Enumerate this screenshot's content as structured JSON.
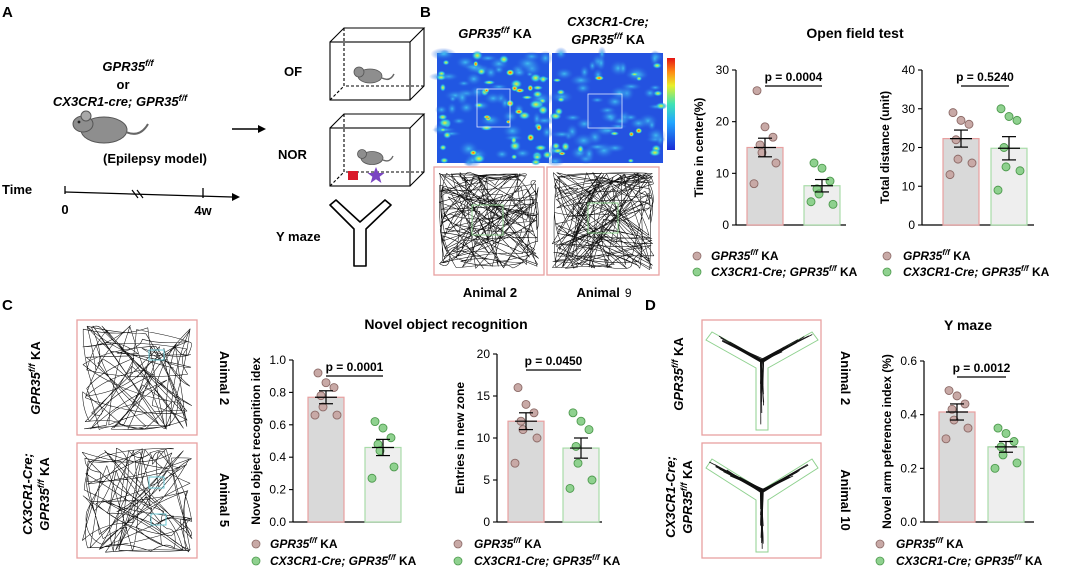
{
  "panel_letters": {
    "a": "A",
    "b": "B",
    "c": "C",
    "d": "D"
  },
  "panel_a": {
    "genotype_1": "GPR35",
    "genotype_1_sup": "f/f",
    "or_text": "or",
    "genotype_2": "CX3CR1-cre; GPR35",
    "genotype_2_sup": "f/f",
    "model_label": "(Epilepsy model)",
    "time_label": "Time",
    "t0": "0",
    "t4": "4w",
    "tests": [
      "OF",
      "NOR",
      "Y maze"
    ]
  },
  "panel_b": {
    "col1_title": "GPR35",
    "col1_title_sup": "f/f",
    "col1_title_suffix": " KA",
    "col2_title_line1": "CX3CR1-Cre;",
    "col2_title_line2": "GPR35",
    "col2_title_sup": "f/f",
    "col2_title_suffix": " KA",
    "animal_1": "Animal 2",
    "animal_2_text": "Animal",
    "animal_2_num": "9",
    "section_title": "Open field test"
  },
  "panel_c": {
    "row1_label": "GPR35",
    "row1_sup": "f/f",
    "row1_suffix": " KA",
    "row2_label_line1": "CX3CR1-Cre;",
    "row2_label_line2": "GPR35",
    "row2_sup": "f/f",
    "row2_suffix": " KA",
    "animal_1": "Animal 2",
    "animal_2": "Animal 5",
    "section_title": "Novel object recognition"
  },
  "panel_d": {
    "row1_label": "GPR35",
    "row1_sup": "f/f",
    "row1_suffix": " KA",
    "row2_label_line1": "CX3CR1-Cre;",
    "row2_label_line2": "GPR35",
    "row2_sup": "f/f",
    "row2_suffix": " KA",
    "animal_1": "Animal 2",
    "animal_2": "Animal 10",
    "section_title": "Y maze"
  },
  "legend": {
    "g1_name": "GPR35",
    "g1_sup": "f/f",
    "g1_suffix": " KA",
    "g2_prefix": "CX3CR1-Cre; GPR35",
    "g2_sup": "f/f",
    "g2_suffix": " KA"
  },
  "colors": {
    "group1_fill": "#d9d9d9",
    "group1_edge": "#e8a0a0",
    "group1_dot": "#c8a9a6",
    "group2_fill": "#eeeeee",
    "group2_edge": "#a9dca9",
    "group2_dot": "#8fd18f",
    "frame_red": "#e8a0a0",
    "frame_green": "#8fd18f"
  },
  "chart_data": [
    {
      "id": "of_center",
      "type": "bar",
      "ylabel": "Time in center(%)",
      "ylim": [
        0,
        30
      ],
      "yticks": [
        0,
        10,
        20,
        30
      ],
      "pvalue": "p = 0.0004",
      "series": [
        {
          "name": "GPR35 f/f KA",
          "mean": 15,
          "sem": 1.8,
          "points": [
            26,
            19,
            17,
            15.5,
            14,
            12,
            8
          ]
        },
        {
          "name": "CX3CR1-Cre; GPR35 f/f KA",
          "mean": 7.6,
          "sem": 1.2,
          "points": [
            12,
            11,
            8.5,
            7,
            6,
            4,
            4.5
          ]
        }
      ]
    },
    {
      "id": "of_distance",
      "type": "bar",
      "ylabel": "Total distance (unit)",
      "ylim": [
        0,
        40
      ],
      "yticks": [
        0,
        10,
        20,
        30,
        40
      ],
      "pvalue": "p = 0.5240",
      "series": [
        {
          "name": "GPR35 f/f KA",
          "mean": 22.3,
          "sem": 2.2,
          "points": [
            29,
            27,
            26,
            22,
            17,
            16,
            13
          ]
        },
        {
          "name": "CX3CR1-Cre; GPR35 f/f KA",
          "mean": 19.8,
          "sem": 3.0,
          "points": [
            30,
            28,
            27,
            20,
            15,
            14,
            9
          ]
        }
      ]
    },
    {
      "id": "nor_index",
      "type": "bar",
      "ylabel": "Novel object recognition idex",
      "ylim": [
        0,
        1.0
      ],
      "yticks": [
        0.0,
        0.2,
        0.4,
        0.6,
        0.8,
        1.0
      ],
      "pvalue": "p = 0.0001",
      "series": [
        {
          "name": "GPR35 f/f KA",
          "mean": 0.77,
          "sem": 0.04,
          "points": [
            0.92,
            0.86,
            0.83,
            0.78,
            0.71,
            0.66,
            0.66
          ]
        },
        {
          "name": "CX3CR1-Cre; GPR35 f/f KA",
          "mean": 0.46,
          "sem": 0.05,
          "points": [
            0.62,
            0.58,
            0.52,
            0.48,
            0.44,
            0.34,
            0.27
          ]
        }
      ]
    },
    {
      "id": "nor_entries",
      "type": "bar",
      "ylabel": "Entries in new zone",
      "ylim": [
        0,
        20
      ],
      "yticks": [
        0,
        5,
        10,
        15,
        20
      ],
      "pvalue": "p = 0.0450",
      "series": [
        {
          "name": "GPR35 f/f KA",
          "mean": 12.0,
          "sem": 1.0,
          "points": [
            16,
            14,
            13,
            12,
            11,
            10,
            7
          ]
        },
        {
          "name": "CX3CR1-Cre; GPR35 f/f KA",
          "mean": 8.8,
          "sem": 1.2,
          "points": [
            13,
            12,
            11,
            9,
            7,
            5,
            4
          ]
        }
      ]
    },
    {
      "id": "ymaze_index",
      "type": "bar",
      "ylabel": "Novel arm peference index (%)",
      "ylim": [
        0,
        0.6
      ],
      "yticks": [
        0.0,
        0.2,
        0.4,
        0.6
      ],
      "pvalue": "p = 0.0012",
      "series": [
        {
          "name": "GPR35 f/f KA",
          "mean": 0.41,
          "sem": 0.03,
          "points": [
            0.49,
            0.47,
            0.44,
            0.42,
            0.38,
            0.35,
            0.31
          ]
        },
        {
          "name": "CX3CR1-Cre; GPR35 f/f KA",
          "mean": 0.28,
          "sem": 0.02,
          "points": [
            0.35,
            0.33,
            0.3,
            0.28,
            0.25,
            0.22,
            0.2
          ]
        }
      ]
    }
  ]
}
